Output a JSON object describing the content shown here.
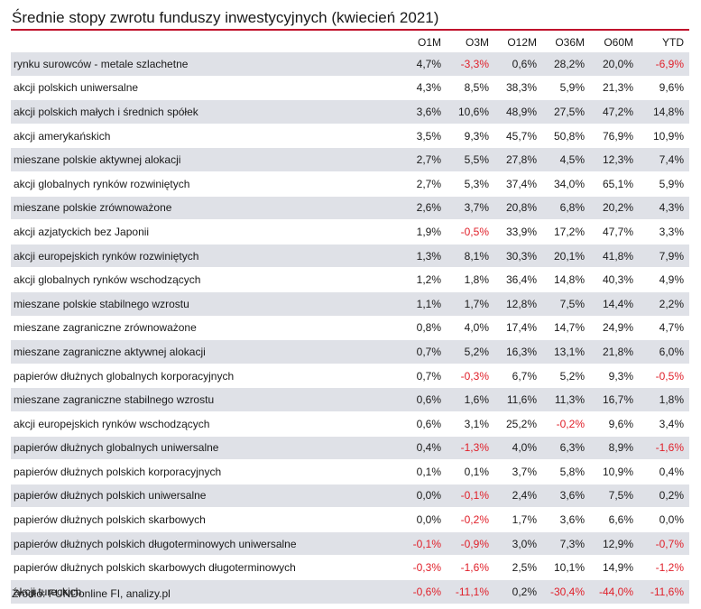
{
  "title": "Średnie stopy zwrotu funduszy inwestycyjnych (kwiecień 2021)",
  "columns": [
    "O1M",
    "O3M",
    "O12M",
    "O36M",
    "O60M",
    "YTD"
  ],
  "negative_color": "#e0202a",
  "accent_color": "#c0122c",
  "rows": [
    {
      "name": "rynku surowców - metale szlachetne",
      "values": [
        "4,7%",
        "-3,3%",
        "0,6%",
        "28,2%",
        "20,0%",
        "-6,9%"
      ]
    },
    {
      "name": "akcji polskich uniwersalne",
      "values": [
        "4,3%",
        "8,5%",
        "38,3%",
        "5,9%",
        "21,3%",
        "9,6%"
      ]
    },
    {
      "name": "akcji polskich małych i średnich spółek",
      "values": [
        "3,6%",
        "10,6%",
        "48,9%",
        "27,5%",
        "47,2%",
        "14,8%"
      ]
    },
    {
      "name": "akcji amerykańskich",
      "values": [
        "3,5%",
        "9,3%",
        "45,7%",
        "50,8%",
        "76,9%",
        "10,9%"
      ]
    },
    {
      "name": "mieszane polskie aktywnej alokacji",
      "values": [
        "2,7%",
        "5,5%",
        "27,8%",
        "4,5%",
        "12,3%",
        "7,4%"
      ]
    },
    {
      "name": "akcji globalnych rynków rozwiniętych",
      "values": [
        "2,7%",
        "5,3%",
        "37,4%",
        "34,0%",
        "65,1%",
        "5,9%"
      ]
    },
    {
      "name": "mieszane polskie zrównoważone",
      "values": [
        "2,6%",
        "3,7%",
        "20,8%",
        "6,8%",
        "20,2%",
        "4,3%"
      ]
    },
    {
      "name": "akcji azjatyckich bez Japonii",
      "values": [
        "1,9%",
        "-0,5%",
        "33,9%",
        "17,2%",
        "47,7%",
        "3,3%"
      ]
    },
    {
      "name": "akcji europejskich rynków rozwiniętych",
      "values": [
        "1,3%",
        "8,1%",
        "30,3%",
        "20,1%",
        "41,8%",
        "7,9%"
      ]
    },
    {
      "name": "akcji globalnych rynków wschodzących",
      "values": [
        "1,2%",
        "1,8%",
        "36,4%",
        "14,8%",
        "40,3%",
        "4,9%"
      ]
    },
    {
      "name": "mieszane polskie stabilnego wzrostu",
      "values": [
        "1,1%",
        "1,7%",
        "12,8%",
        "7,5%",
        "14,4%",
        "2,2%"
      ]
    },
    {
      "name": "mieszane zagraniczne zrównoważone",
      "values": [
        "0,8%",
        "4,0%",
        "17,4%",
        "14,7%",
        "24,9%",
        "4,7%"
      ]
    },
    {
      "name": "mieszane zagraniczne aktywnej alokacji",
      "values": [
        "0,7%",
        "5,2%",
        "16,3%",
        "13,1%",
        "21,8%",
        "6,0%"
      ]
    },
    {
      "name": "papierów dłużnych globalnych korporacyjnych",
      "values": [
        "0,7%",
        "-0,3%",
        "6,7%",
        "5,2%",
        "9,3%",
        "-0,5%"
      ]
    },
    {
      "name": "mieszane zagraniczne stabilnego wzrostu",
      "values": [
        "0,6%",
        "1,6%",
        "11,6%",
        "11,3%",
        "16,7%",
        "1,8%"
      ]
    },
    {
      "name": "akcji europejskich rynków wschodzących",
      "values": [
        "0,6%",
        "3,1%",
        "25,2%",
        "-0,2%",
        "9,6%",
        "3,4%"
      ]
    },
    {
      "name": "papierów dłużnych globalnych uniwersalne",
      "values": [
        "0,4%",
        "-1,3%",
        "4,0%",
        "6,3%",
        "8,9%",
        "-1,6%"
      ]
    },
    {
      "name": "papierów dłużnych polskich korporacyjnych",
      "values": [
        "0,1%",
        "0,1%",
        "3,7%",
        "5,8%",
        "10,9%",
        "0,4%"
      ]
    },
    {
      "name": "papierów dłużnych polskich uniwersalne",
      "values": [
        "0,0%",
        "-0,1%",
        "2,4%",
        "3,6%",
        "7,5%",
        "0,2%"
      ]
    },
    {
      "name": "papierów dłużnych polskich skarbowych",
      "values": [
        "0,0%",
        "-0,2%",
        "1,7%",
        "3,6%",
        "6,6%",
        "0,0%"
      ]
    },
    {
      "name": "papierów dłużnych polskich długoterminowych uniwersalne",
      "values": [
        "-0,1%",
        "-0,9%",
        "3,0%",
        "7,3%",
        "12,9%",
        "-0,7%"
      ]
    },
    {
      "name": "papierów dłużnych polskich skarbowych długoterminowych",
      "values": [
        "-0,3%",
        "-1,6%",
        "2,5%",
        "10,1%",
        "14,9%",
        "-1,2%"
      ]
    },
    {
      "name": "akcji tureckich",
      "values": [
        "-0,6%",
        "-11,1%",
        "0,2%",
        "-30,4%",
        "-44,0%",
        "-11,6%"
      ]
    }
  ],
  "source": "Źródło: FUNDonline FI, analizy.pl"
}
